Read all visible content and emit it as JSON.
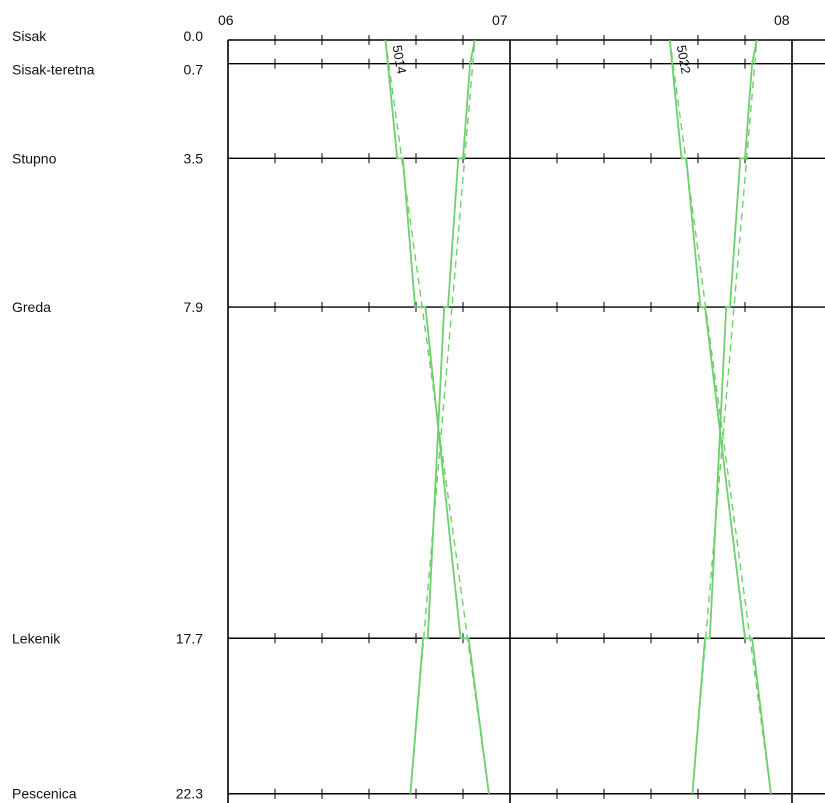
{
  "chart_data": {
    "type": "line",
    "x_axis": {
      "unit": "hour",
      "ticks": [
        "06",
        "07",
        "08"
      ],
      "range_minutes": [
        0,
        125
      ]
    },
    "y_axis": {
      "unit": "km",
      "range": [
        0,
        22.3
      ]
    },
    "stations": [
      {
        "name": "Sisak",
        "km": "0.0"
      },
      {
        "name": "Sisak-teretna",
        "km": "0.7"
      },
      {
        "name": "Stupno",
        "km": "3.5"
      },
      {
        "name": "Greda",
        "km": "7.9"
      },
      {
        "name": "Lekenik",
        "km": "17.7"
      },
      {
        "name": "Pescenica",
        "km": "22.3"
      }
    ],
    "series": [
      {
        "name": "5014",
        "line_style": "solid",
        "color": "#6fcf6f",
        "points": [
          {
            "min": 33.5,
            "km": 0.0
          },
          {
            "min": 36.0,
            "km": 3.5
          },
          {
            "min": 37.2,
            "km": 3.5
          },
          {
            "min": 39.8,
            "km": 7.9
          },
          {
            "min": 42.0,
            "km": 7.9
          },
          {
            "min": 49.5,
            "km": 17.7
          },
          {
            "min": 51.2,
            "km": 17.7
          },
          {
            "min": 55.5,
            "km": 22.3
          }
        ]
      },
      {
        "name": "",
        "line_style": "solid",
        "color": "#6fcf6f",
        "points": [
          {
            "min": 38.8,
            "km": 22.3
          },
          {
            "min": 41.5,
            "km": 17.7
          },
          {
            "min": 42.5,
            "km": 17.7
          },
          {
            "min": 46.0,
            "km": 7.9
          },
          {
            "min": 46.8,
            "km": 7.9
          },
          {
            "min": 49.0,
            "km": 3.5
          },
          {
            "min": 50.0,
            "km": 3.5
          },
          {
            "min": 51.5,
            "km": 0.7
          },
          {
            "min": 52.5,
            "km": 0.0
          }
        ]
      },
      {
        "name": "5022",
        "line_style": "solid",
        "color": "#6fcf6f",
        "points": [
          {
            "min": 94.0,
            "km": 0.0
          },
          {
            "min": 96.5,
            "km": 3.5
          },
          {
            "min": 97.5,
            "km": 3.5
          },
          {
            "min": 100.5,
            "km": 7.9
          },
          {
            "min": 101.5,
            "km": 7.9
          },
          {
            "min": 110.0,
            "km": 17.7
          },
          {
            "min": 111.5,
            "km": 17.7
          },
          {
            "min": 115.5,
            "km": 22.3
          }
        ]
      },
      {
        "name": "",
        "line_style": "solid",
        "color": "#6fcf6f",
        "points": [
          {
            "min": 98.8,
            "km": 22.3
          },
          {
            "min": 101.5,
            "km": 17.7
          },
          {
            "min": 102.5,
            "km": 17.7
          },
          {
            "min": 106.0,
            "km": 7.9
          },
          {
            "min": 106.8,
            "km": 7.9
          },
          {
            "min": 109.0,
            "km": 3.5
          },
          {
            "min": 110.0,
            "km": 3.5
          },
          {
            "min": 111.5,
            "km": 0.7
          },
          {
            "min": 112.5,
            "km": 0.0
          }
        ]
      },
      {
        "name": "",
        "line_style": "dashed",
        "color": "#6fcf6f",
        "points": [
          {
            "min": 33.5,
            "km": 0.0
          },
          {
            "min": 55.5,
            "km": 22.3
          }
        ]
      },
      {
        "name": "",
        "line_style": "dashed",
        "color": "#6fcf6f",
        "points": [
          {
            "min": 38.8,
            "km": 22.3
          },
          {
            "min": 52.5,
            "km": 0.0
          }
        ]
      },
      {
        "name": "",
        "line_style": "dashed",
        "color": "#6fcf6f",
        "points": [
          {
            "min": 94.0,
            "km": 0.0
          },
          {
            "min": 115.5,
            "km": 22.3
          }
        ]
      },
      {
        "name": "",
        "line_style": "dashed",
        "color": "#6fcf6f",
        "points": [
          {
            "min": 98.8,
            "km": 22.3
          },
          {
            "min": 112.5,
            "km": 0.0
          }
        ]
      }
    ],
    "grid": true,
    "legend": "none"
  }
}
